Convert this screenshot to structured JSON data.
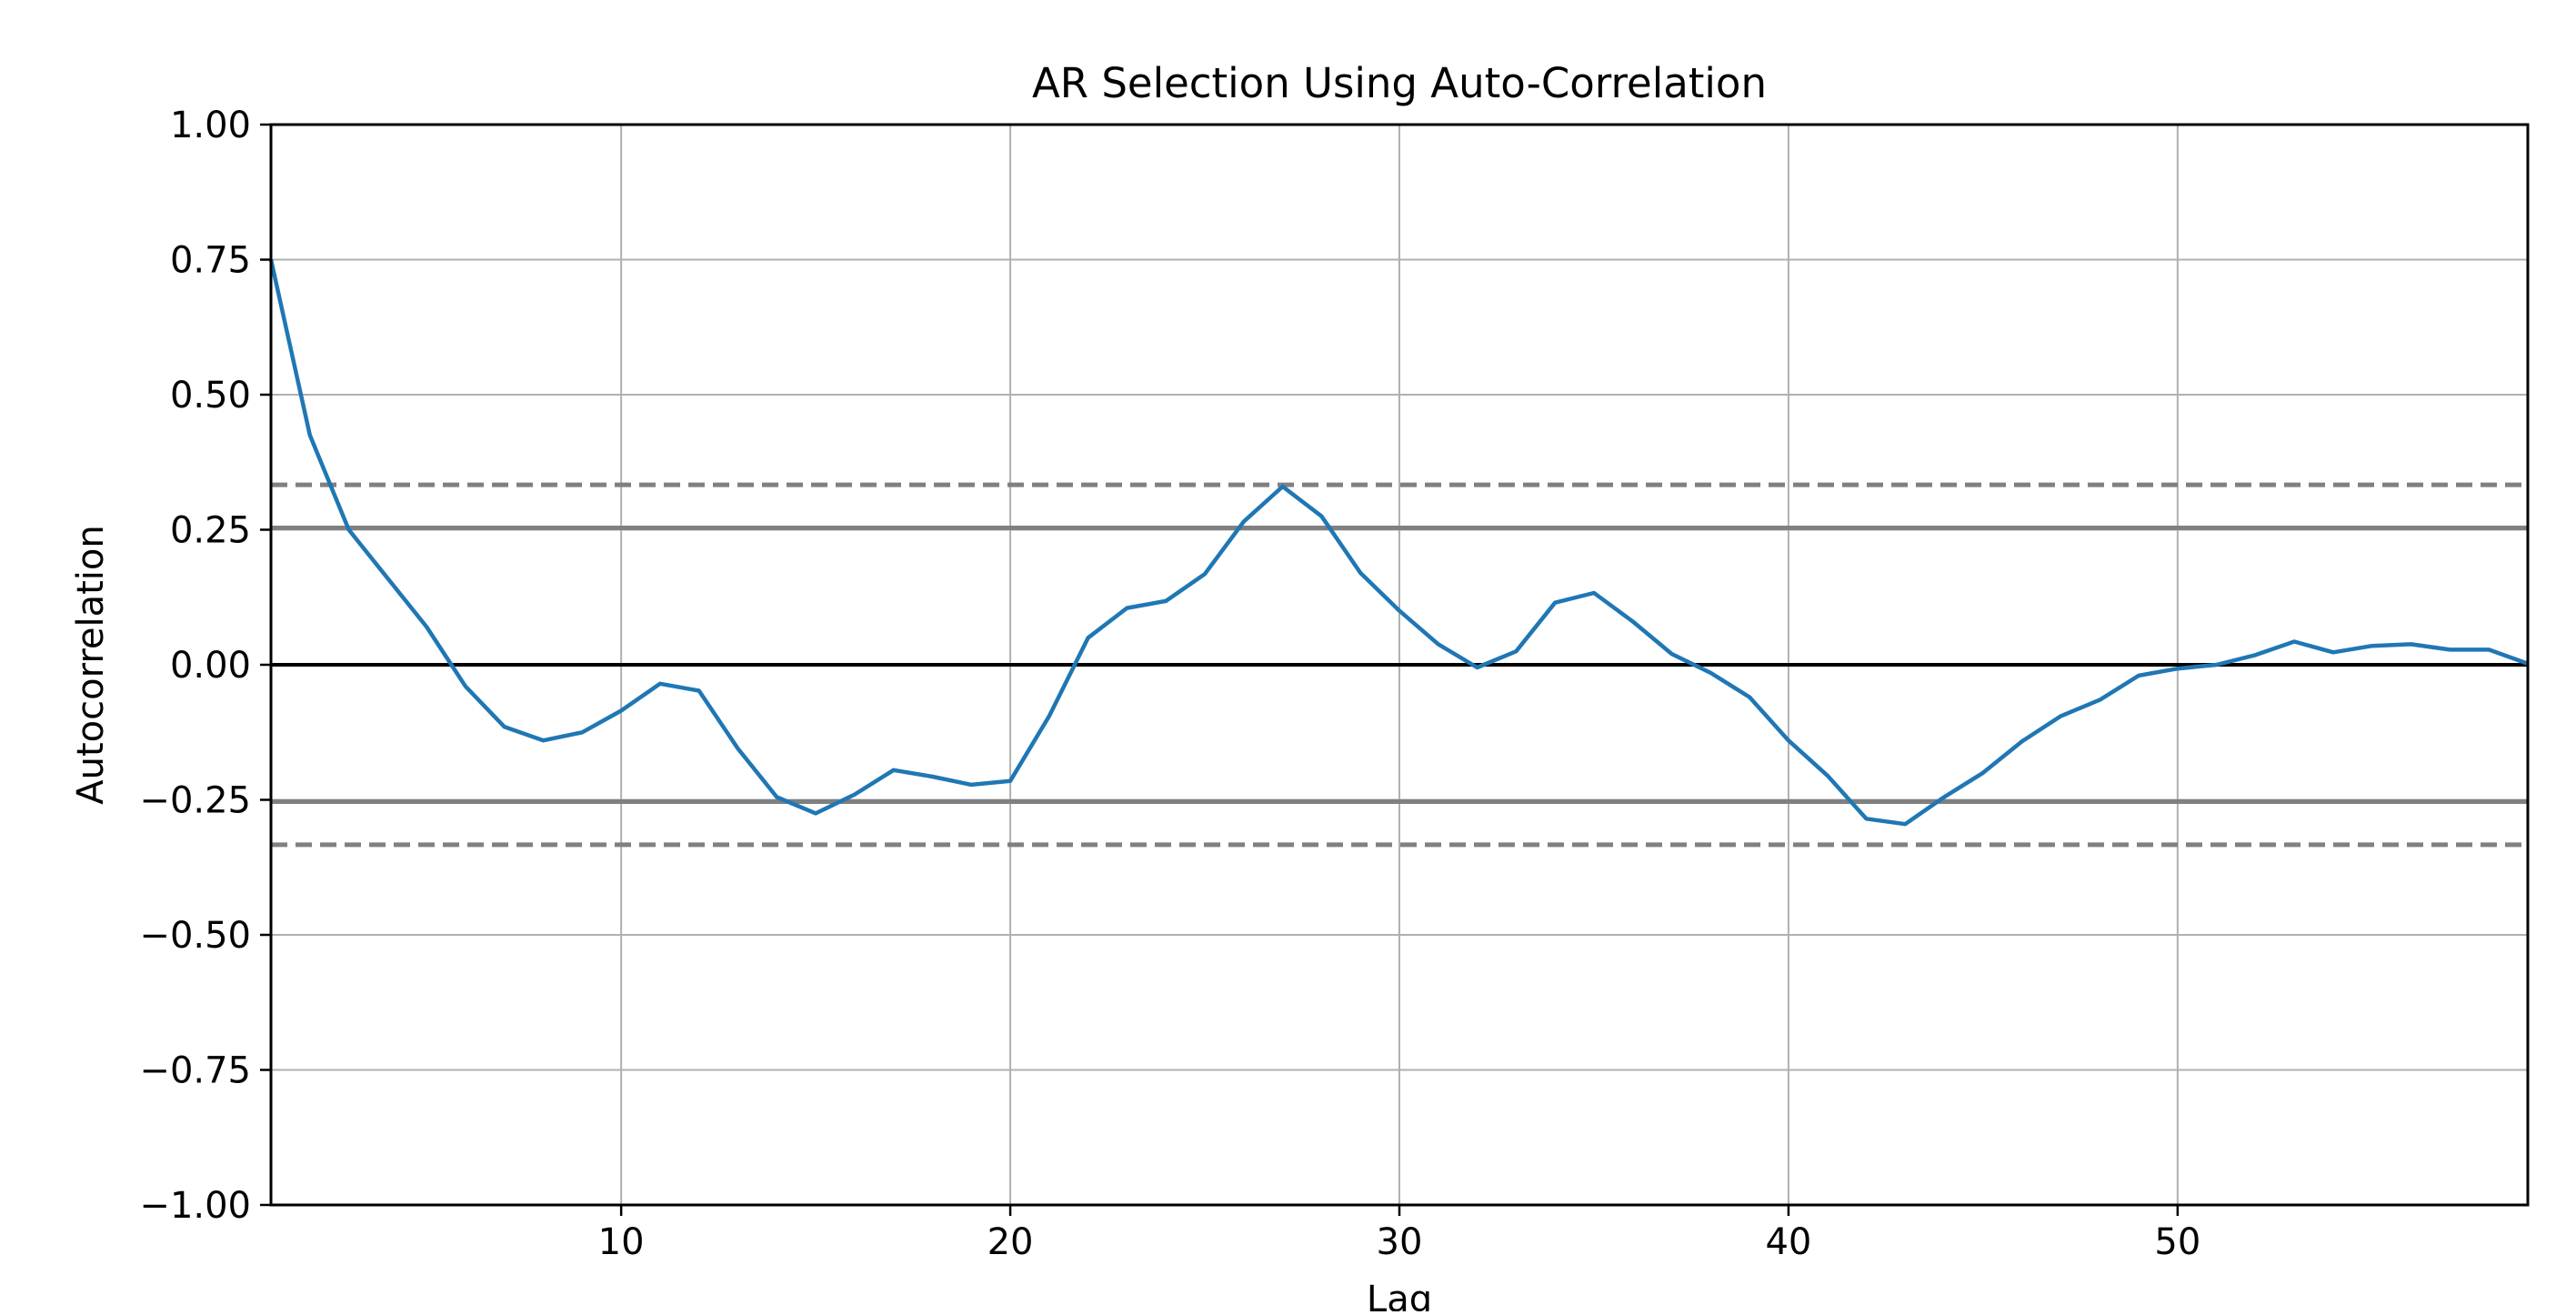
{
  "chart_data": {
    "type": "line",
    "title": "AR Selection Using Auto-Correlation",
    "xlabel": "Lag",
    "ylabel": "Autocorrelation",
    "xlim": [
      1,
      59
    ],
    "ylim": [
      -1.0,
      1.0
    ],
    "xticks": [
      10,
      20,
      30,
      40,
      50
    ],
    "xtick_labels": [
      "10",
      "20",
      "30",
      "40",
      "50"
    ],
    "yticks": [
      1.0,
      0.75,
      0.5,
      0.25,
      0.0,
      -0.25,
      -0.5,
      -0.75,
      -1.0
    ],
    "ytick_labels": [
      "1.00",
      "0.75",
      "0.50",
      "0.25",
      "0.00",
      "−0.25",
      "−0.50",
      "−0.75",
      "−1.00"
    ],
    "grid": true,
    "series": [
      {
        "color": "#1f77b4",
        "x": [
          1,
          2,
          3,
          4,
          5,
          6,
          7,
          8,
          9,
          10,
          11,
          12,
          13,
          14,
          15,
          16,
          17,
          18,
          19,
          20,
          21,
          22,
          23,
          24,
          25,
          26,
          27,
          28,
          29,
          30,
          31,
          32,
          33,
          34,
          35,
          36,
          37,
          38,
          39,
          40,
          41,
          42,
          43,
          44,
          45,
          46,
          47,
          48,
          49,
          50,
          51,
          52,
          53,
          54,
          55,
          56,
          57,
          58,
          59
        ],
        "values": [
          0.75,
          0.425,
          0.25,
          0.16,
          0.07,
          -0.04,
          -0.115,
          -0.14,
          -0.125,
          -0.085,
          -0.035,
          -0.048,
          -0.155,
          -0.245,
          -0.275,
          -0.24,
          -0.195,
          -0.207,
          -0.222,
          -0.215,
          -0.095,
          0.05,
          0.105,
          0.118,
          0.168,
          0.265,
          0.33,
          0.275,
          0.17,
          0.1,
          0.038,
          -0.005,
          0.025,
          0.115,
          0.133,
          0.08,
          0.02,
          -0.015,
          -0.06,
          -0.14,
          -0.205,
          -0.285,
          -0.295,
          -0.245,
          -0.2,
          -0.142,
          -0.095,
          -0.065,
          -0.02,
          -0.007,
          0.0,
          0.018,
          0.043,
          0.023,
          0.035,
          0.038,
          0.028,
          0.028,
          0.002
        ]
      }
    ],
    "reference_lines": [
      {
        "y": 0.0,
        "style": "solid",
        "color": "#000000"
      },
      {
        "y": 0.2534,
        "style": "solid",
        "color": "#808080"
      },
      {
        "y": -0.2534,
        "style": "solid",
        "color": "#808080"
      },
      {
        "y": 0.3331,
        "style": "dashed",
        "color": "#808080"
      },
      {
        "y": -0.3331,
        "style": "dashed",
        "color": "#808080"
      }
    ]
  }
}
